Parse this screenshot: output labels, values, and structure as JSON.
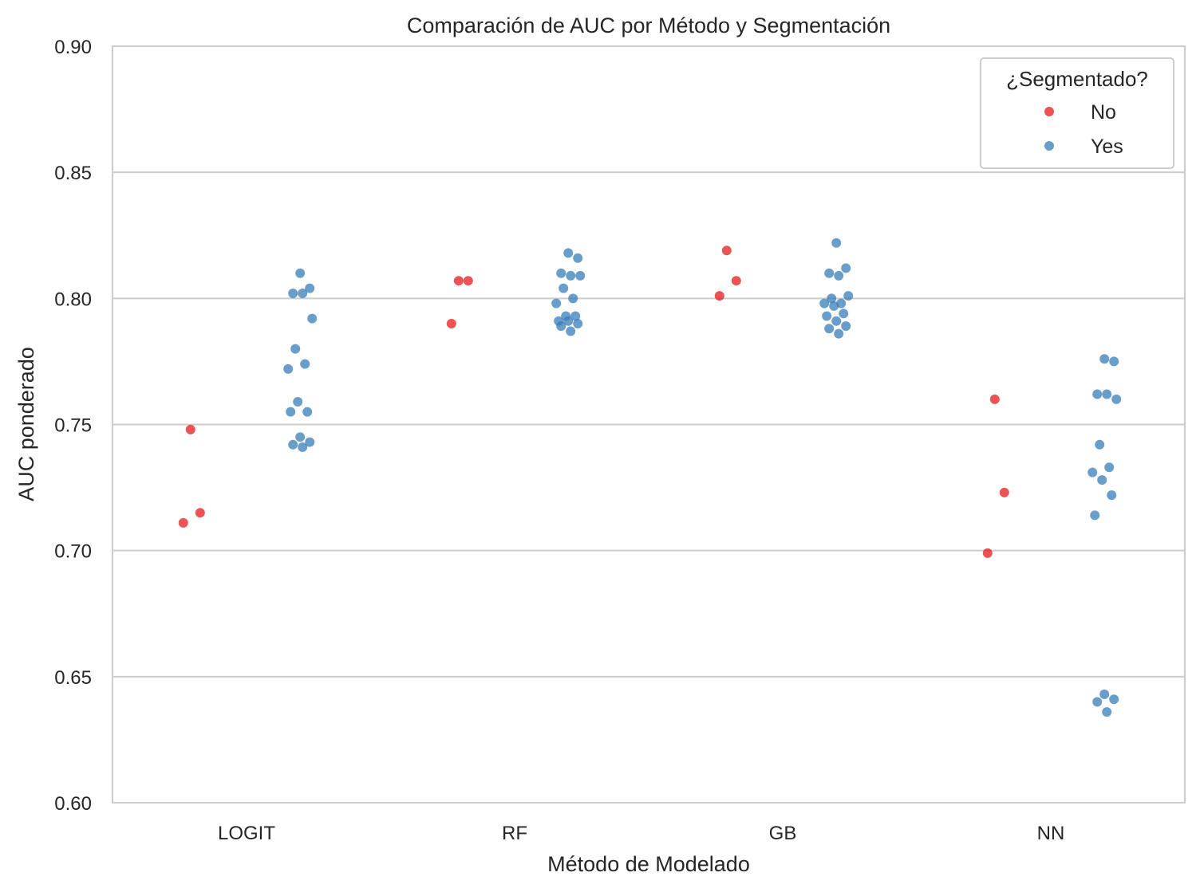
{
  "chart_data": {
    "type": "scatter",
    "title": "Comparación de AUC por Método y Segmentación",
    "xlabel": "Método de Modelado",
    "ylabel": "AUC ponderado",
    "categories": [
      "LOGIT",
      "RF",
      "GB",
      "NN"
    ],
    "ylim": [
      0.6,
      0.9
    ],
    "yticks": [
      "0.60",
      "0.65",
      "0.70",
      "0.75",
      "0.80",
      "0.85",
      "0.90"
    ],
    "grid": "horizontal",
    "legend": {
      "title": "¿Segmentado?",
      "position": "top-right",
      "entries": [
        "No",
        "Yes"
      ]
    },
    "colors": {
      "No": "#e41a1c",
      "Yes": "#377eb8",
      "grid": "#cccccc",
      "text": "#262626"
    },
    "series": [
      {
        "name": "No",
        "points": [
          {
            "category": "LOGIT",
            "y": 0.748
          },
          {
            "category": "LOGIT",
            "y": 0.715
          },
          {
            "category": "LOGIT",
            "y": 0.711
          },
          {
            "category": "RF",
            "y": 0.807
          },
          {
            "category": "RF",
            "y": 0.807
          },
          {
            "category": "RF",
            "y": 0.79
          },
          {
            "category": "GB",
            "y": 0.819
          },
          {
            "category": "GB",
            "y": 0.807
          },
          {
            "category": "GB",
            "y": 0.801
          },
          {
            "category": "NN",
            "y": 0.76
          },
          {
            "category": "NN",
            "y": 0.723
          },
          {
            "category": "NN",
            "y": 0.699
          }
        ]
      },
      {
        "name": "Yes",
        "points": [
          {
            "category": "LOGIT",
            "y": 0.81
          },
          {
            "category": "LOGIT",
            "y": 0.804
          },
          {
            "category": "LOGIT",
            "y": 0.802
          },
          {
            "category": "LOGIT",
            "y": 0.802
          },
          {
            "category": "LOGIT",
            "y": 0.792
          },
          {
            "category": "LOGIT",
            "y": 0.78
          },
          {
            "category": "LOGIT",
            "y": 0.774
          },
          {
            "category": "LOGIT",
            "y": 0.772
          },
          {
            "category": "LOGIT",
            "y": 0.759
          },
          {
            "category": "LOGIT",
            "y": 0.755
          },
          {
            "category": "LOGIT",
            "y": 0.755
          },
          {
            "category": "LOGIT",
            "y": 0.745
          },
          {
            "category": "LOGIT",
            "y": 0.743
          },
          {
            "category": "LOGIT",
            "y": 0.742
          },
          {
            "category": "LOGIT",
            "y": 0.741
          },
          {
            "category": "RF",
            "y": 0.818
          },
          {
            "category": "RF",
            "y": 0.816
          },
          {
            "category": "RF",
            "y": 0.81
          },
          {
            "category": "RF",
            "y": 0.809
          },
          {
            "category": "RF",
            "y": 0.809
          },
          {
            "category": "RF",
            "y": 0.804
          },
          {
            "category": "RF",
            "y": 0.8
          },
          {
            "category": "RF",
            "y": 0.798
          },
          {
            "category": "RF",
            "y": 0.793
          },
          {
            "category": "RF",
            "y": 0.793
          },
          {
            "category": "RF",
            "y": 0.791
          },
          {
            "category": "RF",
            "y": 0.791
          },
          {
            "category": "RF",
            "y": 0.79
          },
          {
            "category": "RF",
            "y": 0.789
          },
          {
            "category": "RF",
            "y": 0.787
          },
          {
            "category": "GB",
            "y": 0.822
          },
          {
            "category": "GB",
            "y": 0.812
          },
          {
            "category": "GB",
            "y": 0.81
          },
          {
            "category": "GB",
            "y": 0.809
          },
          {
            "category": "GB",
            "y": 0.801
          },
          {
            "category": "GB",
            "y": 0.8
          },
          {
            "category": "GB",
            "y": 0.798
          },
          {
            "category": "GB",
            "y": 0.798
          },
          {
            "category": "GB",
            "y": 0.797
          },
          {
            "category": "GB",
            "y": 0.794
          },
          {
            "category": "GB",
            "y": 0.793
          },
          {
            "category": "GB",
            "y": 0.791
          },
          {
            "category": "GB",
            "y": 0.789
          },
          {
            "category": "GB",
            "y": 0.788
          },
          {
            "category": "GB",
            "y": 0.786
          },
          {
            "category": "NN",
            "y": 0.776
          },
          {
            "category": "NN",
            "y": 0.775
          },
          {
            "category": "NN",
            "y": 0.762
          },
          {
            "category": "NN",
            "y": 0.762
          },
          {
            "category": "NN",
            "y": 0.76
          },
          {
            "category": "NN",
            "y": 0.742
          },
          {
            "category": "NN",
            "y": 0.733
          },
          {
            "category": "NN",
            "y": 0.731
          },
          {
            "category": "NN",
            "y": 0.728
          },
          {
            "category": "NN",
            "y": 0.722
          },
          {
            "category": "NN",
            "y": 0.714
          },
          {
            "category": "NN",
            "y": 0.643
          },
          {
            "category": "NN",
            "y": 0.641
          },
          {
            "category": "NN",
            "y": 0.64
          },
          {
            "category": "NN",
            "y": 0.636
          }
        ]
      }
    ]
  }
}
